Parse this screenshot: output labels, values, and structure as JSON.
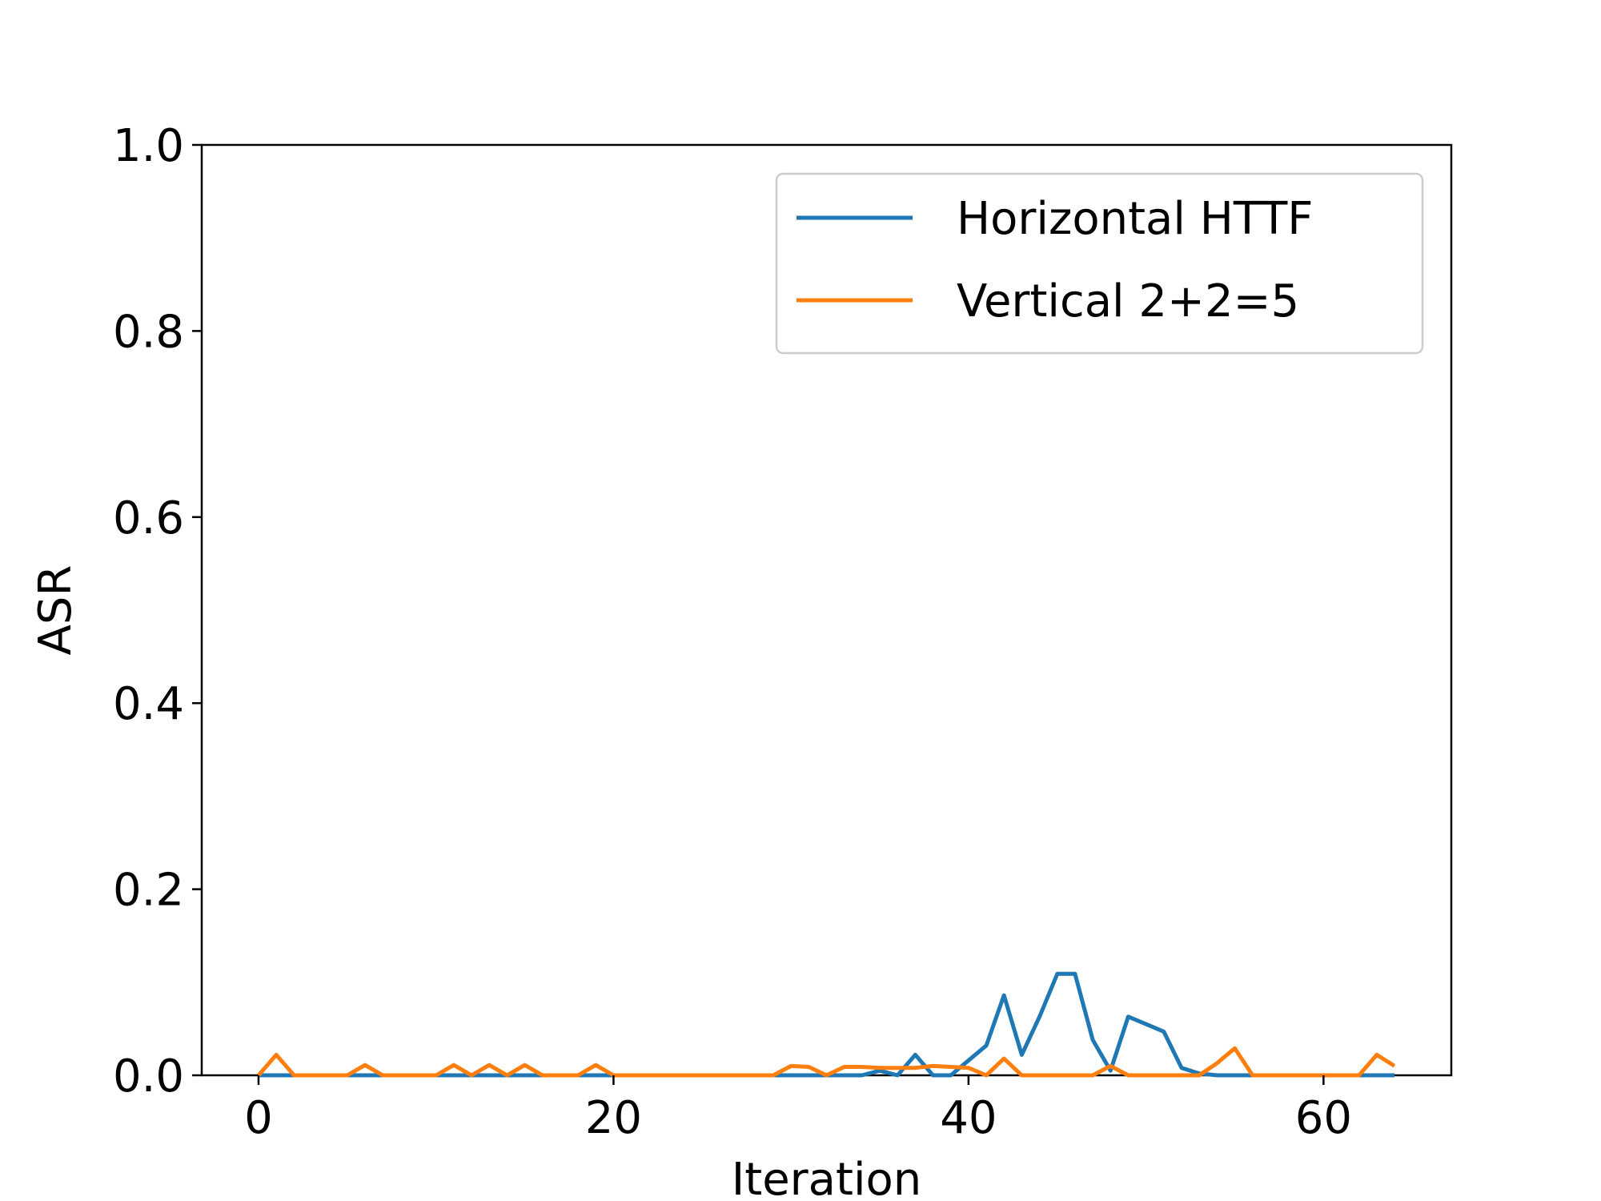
{
  "chart_data": {
    "type": "line",
    "title": "",
    "xlabel": "Iteration",
    "ylabel": "ASR",
    "xlim": [
      -3.2,
      67.2
    ],
    "ylim": [
      0.0,
      1.0
    ],
    "xticks": [
      0,
      20,
      40,
      60
    ],
    "yticks": [
      0.0,
      0.2,
      0.4,
      0.6,
      0.8,
      1.0
    ],
    "x_tick_labels": [
      "0",
      "20",
      "40",
      "60"
    ],
    "y_tick_labels": [
      "0.0",
      "0.2",
      "0.4",
      "0.6",
      "0.8",
      "1.0"
    ],
    "grid": false,
    "legend_position": "top-right",
    "series": [
      {
        "name": "Horizontal HTTF",
        "color": "#1f77b4",
        "x": [
          0,
          1,
          2,
          3,
          4,
          5,
          6,
          7,
          8,
          9,
          10,
          11,
          12,
          13,
          14,
          15,
          16,
          17,
          18,
          19,
          20,
          21,
          22,
          23,
          24,
          25,
          26,
          27,
          28,
          29,
          30,
          31,
          32,
          33,
          34,
          35,
          36,
          37,
          38,
          39,
          40,
          41,
          42,
          43,
          44,
          45,
          46,
          47,
          48,
          49,
          50,
          51,
          52,
          53,
          54,
          55,
          56,
          57,
          58,
          59,
          60,
          61,
          62,
          63,
          64
        ],
        "y": [
          0,
          0,
          0,
          0,
          0,
          0,
          0,
          0,
          0,
          0,
          0,
          0,
          0,
          0,
          0,
          0,
          0,
          0,
          0,
          0,
          0,
          0,
          0,
          0,
          0,
          0,
          0,
          0,
          0,
          0,
          0,
          0,
          0,
          0,
          0,
          0.005,
          0,
          0.022,
          0,
          0,
          0.016,
          0.032,
          0.086,
          0.022,
          0.063,
          0.109,
          0.109,
          0.038,
          0.005,
          0.063,
          0.055,
          0.047,
          0.008,
          0.002,
          0,
          0,
          0,
          0,
          0,
          0,
          0,
          0,
          0,
          0,
          0
        ]
      },
      {
        "name": "Vertical 2+2=5",
        "color": "#ff7f0e",
        "x": [
          0,
          1,
          2,
          3,
          4,
          5,
          6,
          7,
          8,
          9,
          10,
          11,
          12,
          13,
          14,
          15,
          16,
          17,
          18,
          19,
          20,
          21,
          22,
          23,
          24,
          25,
          26,
          27,
          28,
          29,
          30,
          31,
          32,
          33,
          34,
          35,
          36,
          37,
          38,
          39,
          40,
          41,
          42,
          43,
          44,
          45,
          46,
          47,
          48,
          49,
          50,
          51,
          52,
          53,
          54,
          55,
          56,
          57,
          58,
          59,
          60,
          61,
          62,
          63,
          64
        ],
        "y": [
          0,
          0.022,
          0,
          0,
          0,
          0,
          0.011,
          0,
          0,
          0,
          0,
          0.011,
          0,
          0.011,
          0,
          0.011,
          0,
          0,
          0,
          0.011,
          0,
          0,
          0,
          0,
          0,
          0,
          0,
          0,
          0,
          0,
          0.01,
          0.009,
          0,
          0.009,
          0.009,
          0.008,
          0.008,
          0.008,
          0.01,
          0.009,
          0.008,
          0,
          0.018,
          0,
          0,
          0,
          0,
          0,
          0.01,
          0,
          0,
          0,
          0,
          0,
          0.013,
          0.029,
          0,
          0,
          0,
          0,
          0,
          0,
          0,
          0.022,
          0.01
        ]
      }
    ]
  }
}
